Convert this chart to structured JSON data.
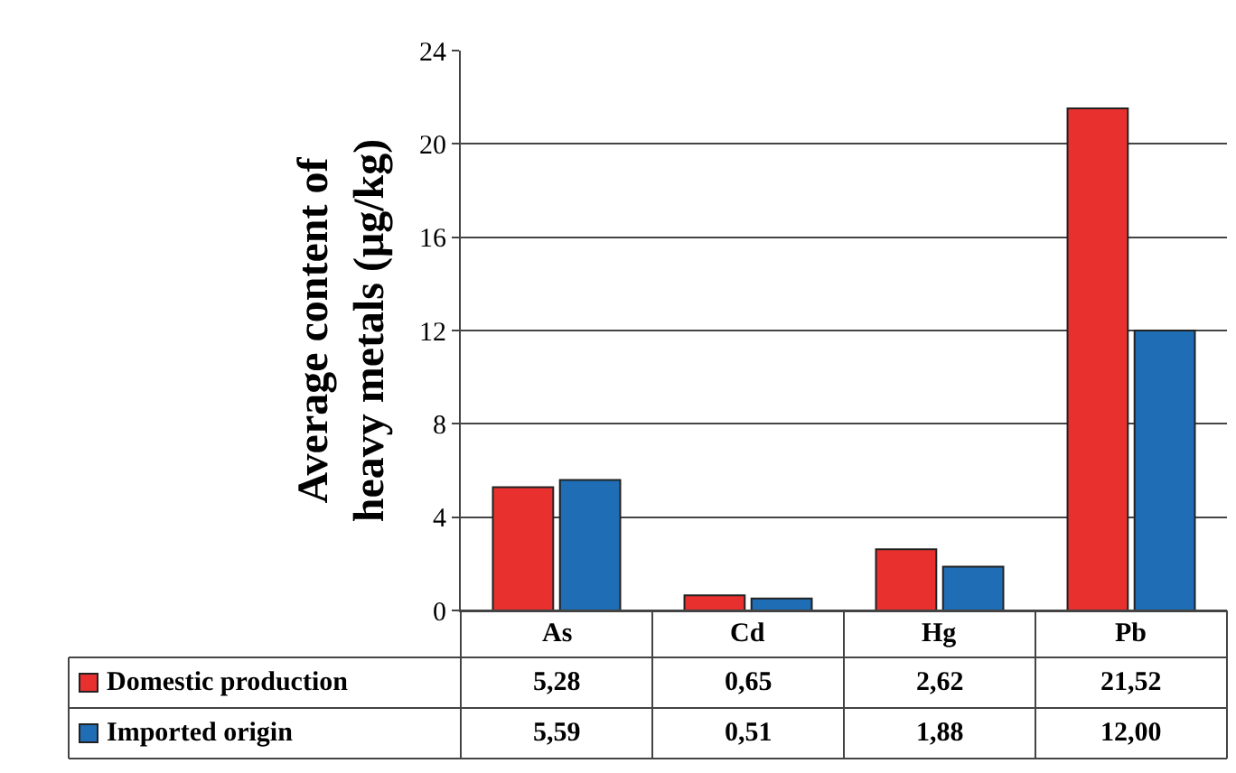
{
  "chart_data": {
    "type": "bar",
    "ylabel": "Average content of heavy metals (μg/kg)",
    "categories": [
      "As",
      "Cd",
      "Hg",
      "Pb"
    ],
    "series": [
      {
        "name": "Domestic production",
        "color": "#e8312f",
        "values": [
          5.28,
          0.65,
          2.62,
          21.52
        ],
        "value_labels": [
          "5,28",
          "0,65",
          "2,62",
          "21,52"
        ]
      },
      {
        "name": "Imported origin",
        "color": "#1f6eb5",
        "values": [
          5.59,
          0.51,
          1.88,
          12.0
        ],
        "value_labels": [
          "5,59",
          "0,51",
          "1,88",
          "12,00"
        ]
      }
    ],
    "ylim": [
      0,
      24
    ],
    "yticks": [
      0,
      4,
      8,
      12,
      16,
      20,
      24
    ],
    "grid": "y",
    "legend": "bottom left"
  }
}
